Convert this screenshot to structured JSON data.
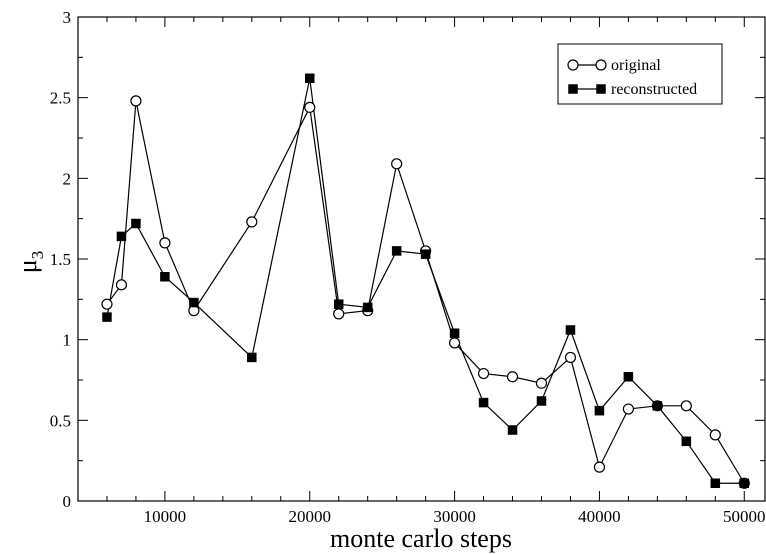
{
  "chart_data": {
    "type": "line",
    "title": "",
    "xlabel": "monte carlo steps",
    "ylabel": "μ",
    "ylabel_subscript": "3",
    "xlim": [
      4000,
      51500
    ],
    "ylim": [
      0,
      3
    ],
    "x_ticks": [
      10000,
      20000,
      30000,
      40000,
      50000
    ],
    "x_tick_labels": [
      "10000",
      "20000",
      "30000",
      "40000",
      "50000"
    ],
    "y_ticks": [
      0,
      0.5,
      1,
      1.5,
      2,
      2.5,
      3
    ],
    "y_tick_labels": [
      "0",
      "0.5",
      "1",
      "1.5",
      "2",
      "2.5",
      "3"
    ],
    "grid": false,
    "legend_position": "top-right",
    "series": [
      {
        "name": "original",
        "marker": "open-circle",
        "color": "#000000",
        "x": [
          6000,
          7000,
          8000,
          10000,
          12000,
          16000,
          20000,
          22000,
          24000,
          26000,
          28000,
          30000,
          32000,
          34000,
          36000,
          38000,
          40000,
          42000,
          44000,
          46000,
          48000,
          50000
        ],
        "y": [
          1.22,
          1.34,
          2.48,
          1.6,
          1.18,
          1.73,
          2.44,
          1.16,
          1.18,
          2.09,
          1.55,
          0.98,
          0.79,
          0.77,
          0.73,
          0.89,
          0.21,
          0.57,
          0.59,
          0.59,
          0.41,
          0.11
        ]
      },
      {
        "name": "reconstructed",
        "marker": "filled-square",
        "color": "#000000",
        "x": [
          6000,
          7000,
          8000,
          10000,
          12000,
          16000,
          20000,
          22000,
          24000,
          26000,
          28000,
          30000,
          32000,
          34000,
          36000,
          38000,
          40000,
          42000,
          44000,
          46000,
          48000,
          50000
        ],
        "y": [
          1.14,
          1.64,
          1.72,
          1.39,
          1.23,
          0.89,
          2.62,
          1.22,
          1.2,
          1.55,
          1.53,
          1.04,
          0.61,
          0.44,
          0.62,
          1.06,
          0.56,
          0.77,
          0.59,
          0.37,
          0.11,
          0.11
        ]
      }
    ]
  }
}
